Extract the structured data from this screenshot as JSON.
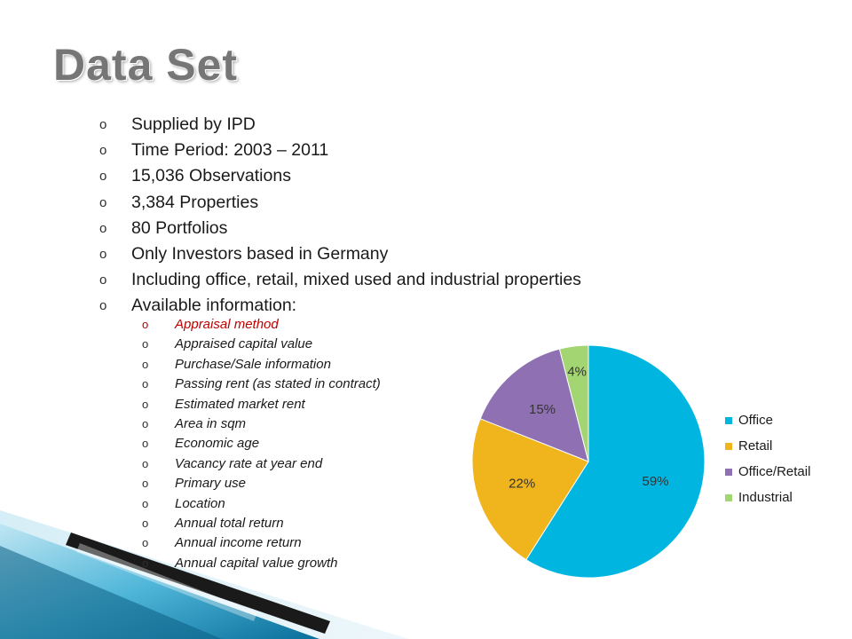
{
  "slide": {
    "title": "Data Set",
    "bullets": [
      "Supplied by IPD",
      "Time Period: 2003 – 2011",
      "15,036 Observations",
      "3,384 Properties",
      "80 Portfolios",
      "Only Investors based in Germany",
      "Including office, retail, mixed used and industrial properties",
      "Available information:"
    ],
    "sub_bullets": [
      "Appraisal method",
      "Appraised capital value",
      "Purchase/Sale information",
      "Passing rent (as stated in contract)",
      "Estimated market rent",
      "Area in sqm",
      "Economic age",
      "Vacancy rate at year end",
      "Primary use",
      "Location",
      "Annual total return",
      "Annual income return",
      "Annual capital value growth"
    ],
    "highlight_color": "#c00000"
  },
  "chart_data": {
    "type": "pie",
    "categories": [
      "Office",
      "Retail",
      "Office/Retail",
      "Industrial"
    ],
    "values": [
      59,
      22,
      15,
      4
    ],
    "labels": [
      "59%",
      "22%",
      "15%",
      "4%"
    ],
    "colors": [
      "#00b6e0",
      "#f0b41c",
      "#8f70b3",
      "#a3d572"
    ],
    "title": "",
    "legend_position": "right"
  }
}
